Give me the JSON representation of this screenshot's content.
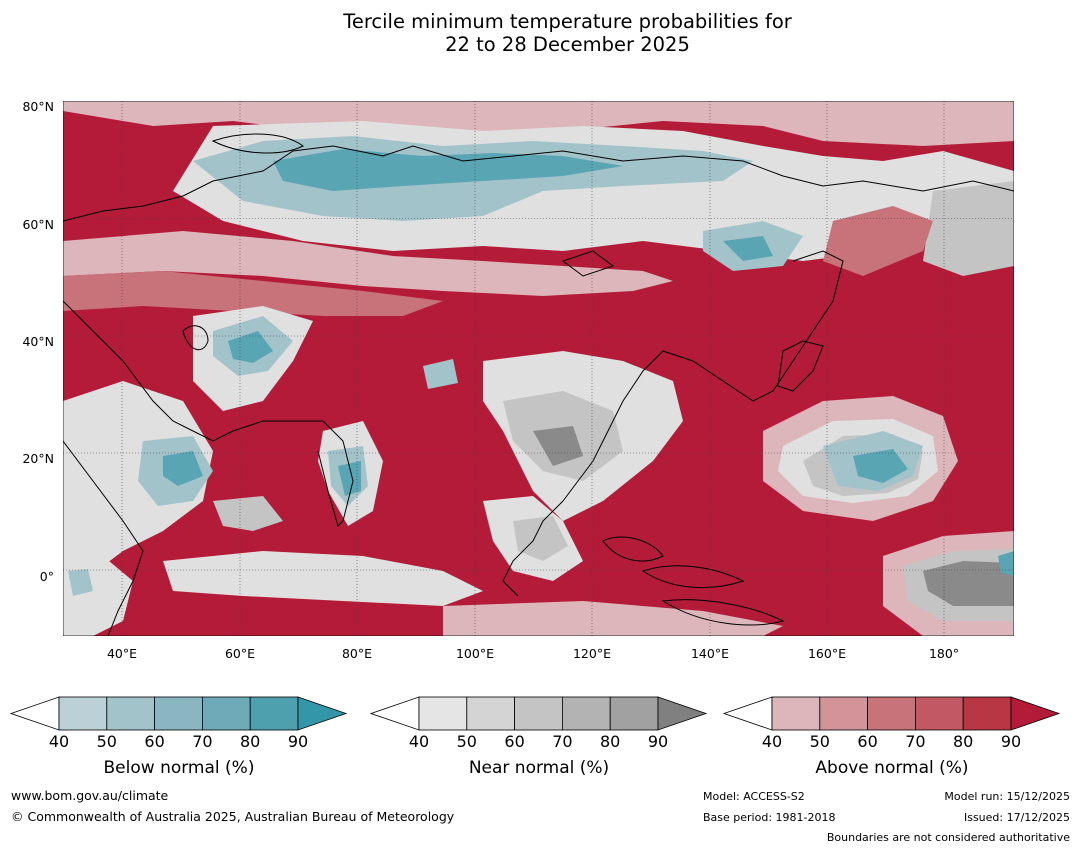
{
  "title": {
    "line1": "Tercile minimum temperature probabilities for",
    "line2": "22 to 28 December 2025"
  },
  "map": {
    "lat_labels": [
      "80°N",
      "60°N",
      "40°N",
      "20°N",
      "0°"
    ],
    "lon_labels": [
      "40°E",
      "60°E",
      "80°E",
      "100°E",
      "120°E",
      "140°E",
      "160°E",
      "180°"
    ]
  },
  "colorbars": [
    {
      "title": "Below normal (%)",
      "ticks": [
        "40",
        "50",
        "60",
        "70",
        "80",
        "90"
      ],
      "colors": [
        "#bcd0d8",
        "#a3c3cb",
        "#89b6c1",
        "#6eabb8",
        "#4fa0af",
        "#3497a9"
      ]
    },
    {
      "title": "Near normal (%)",
      "ticks": [
        "40",
        "50",
        "60",
        "70",
        "80",
        "90"
      ],
      "colors": [
        "#e5e5e5",
        "#d4d4d4",
        "#c4c4c4",
        "#b3b3b3",
        "#a1a1a1",
        "#808080"
      ]
    },
    {
      "title": "Above normal (%)",
      "ticks": [
        "40",
        "50",
        "60",
        "70",
        "80",
        "90"
      ],
      "colors": [
        "#ddb6bb",
        "#d29399",
        "#c8727a",
        "#c25863",
        "#b93645",
        "#b31b38"
      ]
    }
  ],
  "palette": {
    "above_dark": "#b31b38",
    "above_mid": "#c8727a",
    "above_light": "#ddb6bb",
    "near_light": "#e0e0e0",
    "near_mid": "#c4c4c4",
    "near_dark": "#8a8a8a",
    "below_light": "#a3c3cb",
    "below_dark": "#5aa5b3"
  },
  "footer": {
    "website": "www.bom.gov.au/climate",
    "copyright": "© Commonwealth of Australia 2025, Australian Bureau of Meteorology",
    "model": "Model: ACCESS-S2",
    "base_period": "Base period: 1981-2018",
    "model_run": "Model run: 15/12/2025",
    "issued": "Issued: 17/12/2025",
    "disclaimer": "Boundaries are not considered authoritative"
  }
}
